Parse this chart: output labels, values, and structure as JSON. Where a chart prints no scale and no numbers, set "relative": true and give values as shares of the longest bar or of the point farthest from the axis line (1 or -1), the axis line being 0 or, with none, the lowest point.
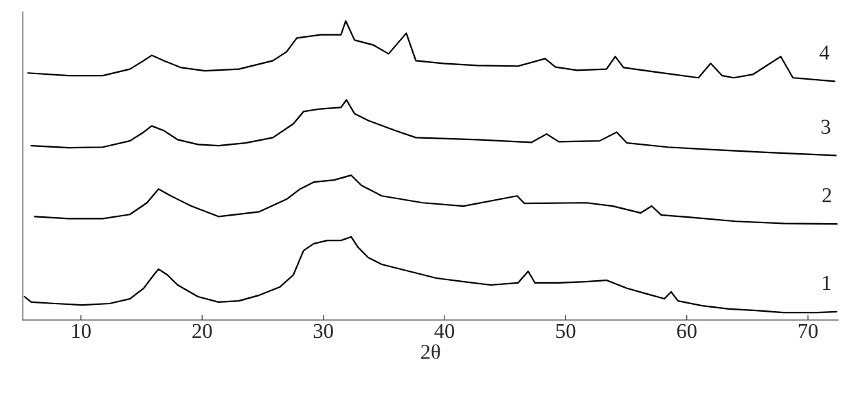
{
  "chart_data": {
    "type": "line",
    "xlabel": "2θ",
    "relative": true,
    "xlim": [
      5.2,
      72.5
    ],
    "xticks": [
      10,
      20,
      30,
      40,
      50,
      60,
      70
    ],
    "grid": false,
    "legend": false,
    "marker": "none",
    "line_style": "solid",
    "series": [
      {
        "name": "1",
        "color": "#000000",
        "x": [
          5.34,
          5.9,
          7.87,
          10.11,
          12.36,
          14.04,
          15.17,
          16.01,
          16.4,
          17.13,
          17.98,
          19.66,
          21.35,
          23.03,
          24.72,
          26.4,
          27.53,
          28.37,
          29.21,
          30.34,
          31.46,
          32.3,
          32.87,
          33.71,
          34.83,
          37.08,
          39.33,
          41.57,
          43.82,
          46.07,
          46.91,
          47.47,
          49.44,
          51.69,
          53.37,
          55.06,
          56.74,
          58.15,
          58.71,
          59.27,
          61.24,
          63.48,
          65.73,
          67.98,
          70.79,
          72.36
        ],
        "values": [
          0.078,
          0.06,
          0.055,
          0.05,
          0.055,
          0.071,
          0.106,
          0.151,
          0.17,
          0.151,
          0.117,
          0.078,
          0.06,
          0.064,
          0.083,
          0.11,
          0.151,
          0.232,
          0.255,
          0.266,
          0.266,
          0.278,
          0.243,
          0.209,
          0.186,
          0.163,
          0.14,
          0.128,
          0.117,
          0.124,
          0.163,
          0.124,
          0.124,
          0.128,
          0.133,
          0.106,
          0.087,
          0.071,
          0.094,
          0.064,
          0.048,
          0.037,
          0.032,
          0.025,
          0.025,
          0.028
        ]
      },
      {
        "name": "2",
        "color": "#000000",
        "x": [
          6.18,
          8.99,
          11.8,
          14.04,
          15.45,
          16.4,
          17.42,
          19.1,
          21.35,
          24.72,
          26.97,
          28.09,
          29.21,
          30.9,
          32.3,
          33.15,
          34.83,
          38.2,
          41.57,
          46.0,
          46.6,
          51.7,
          53.9,
          56.2,
          57.1,
          57.9,
          60.1,
          64.0,
          68.0,
          72.4
        ],
        "values": [
          0.346,
          0.339,
          0.339,
          0.353,
          0.392,
          0.438,
          0.415,
          0.381,
          0.346,
          0.362,
          0.404,
          0.438,
          0.461,
          0.468,
          0.484,
          0.45,
          0.415,
          0.392,
          0.381,
          0.415,
          0.39,
          0.392,
          0.381,
          0.358,
          0.381,
          0.351,
          0.344,
          0.33,
          0.323,
          0.321
        ]
      },
      {
        "name": "3",
        "color": "#000000",
        "x": [
          5.9,
          8.99,
          11.8,
          14.04,
          15.17,
          15.84,
          16.85,
          17.98,
          19.66,
          21.35,
          23.6,
          25.84,
          27.53,
          28.37,
          29.78,
          31.46,
          31.91,
          32.58,
          33.71,
          35.96,
          37.64,
          42.7,
          47.19,
          48.43,
          49.44,
          52.81,
          54.21,
          55.06,
          58.43,
          62.36,
          66.85,
          72.3
        ],
        "values": [
          0.583,
          0.576,
          0.578,
          0.599,
          0.628,
          0.649,
          0.633,
          0.603,
          0.587,
          0.583,
          0.592,
          0.61,
          0.656,
          0.697,
          0.706,
          0.711,
          0.736,
          0.69,
          0.667,
          0.633,
          0.61,
          0.603,
          0.594,
          0.622,
          0.596,
          0.599,
          0.628,
          0.592,
          0.578,
          0.569,
          0.56,
          0.55
        ]
      },
      {
        "name": "4",
        "color": "#000000",
        "x": [
          5.62,
          8.99,
          11.8,
          14.04,
          15.17,
          15.84,
          16.85,
          18.26,
          20.22,
          23.03,
          25.84,
          26.97,
          27.81,
          29.78,
          31.46,
          31.85,
          32.58,
          34.1,
          35.39,
          36.85,
          37.64,
          39.89,
          42.7,
          46.07,
          48.31,
          49.16,
          50.96,
          53.37,
          54.1,
          54.78,
          57.64,
          60.96,
          61.97,
          62.92,
          63.88,
          65.45,
          67.75,
          68.76,
          72.19
        ],
        "values": [
          0.826,
          0.817,
          0.817,
          0.839,
          0.867,
          0.885,
          0.867,
          0.844,
          0.833,
          0.839,
          0.867,
          0.897,
          0.943,
          0.954,
          0.954,
          1.0,
          0.936,
          0.92,
          0.89,
          0.959,
          0.867,
          0.858,
          0.851,
          0.849,
          0.874,
          0.846,
          0.835,
          0.839,
          0.881,
          0.844,
          0.828,
          0.81,
          0.858,
          0.817,
          0.81,
          0.821,
          0.881,
          0.81,
          0.798
        ]
      }
    ]
  }
}
